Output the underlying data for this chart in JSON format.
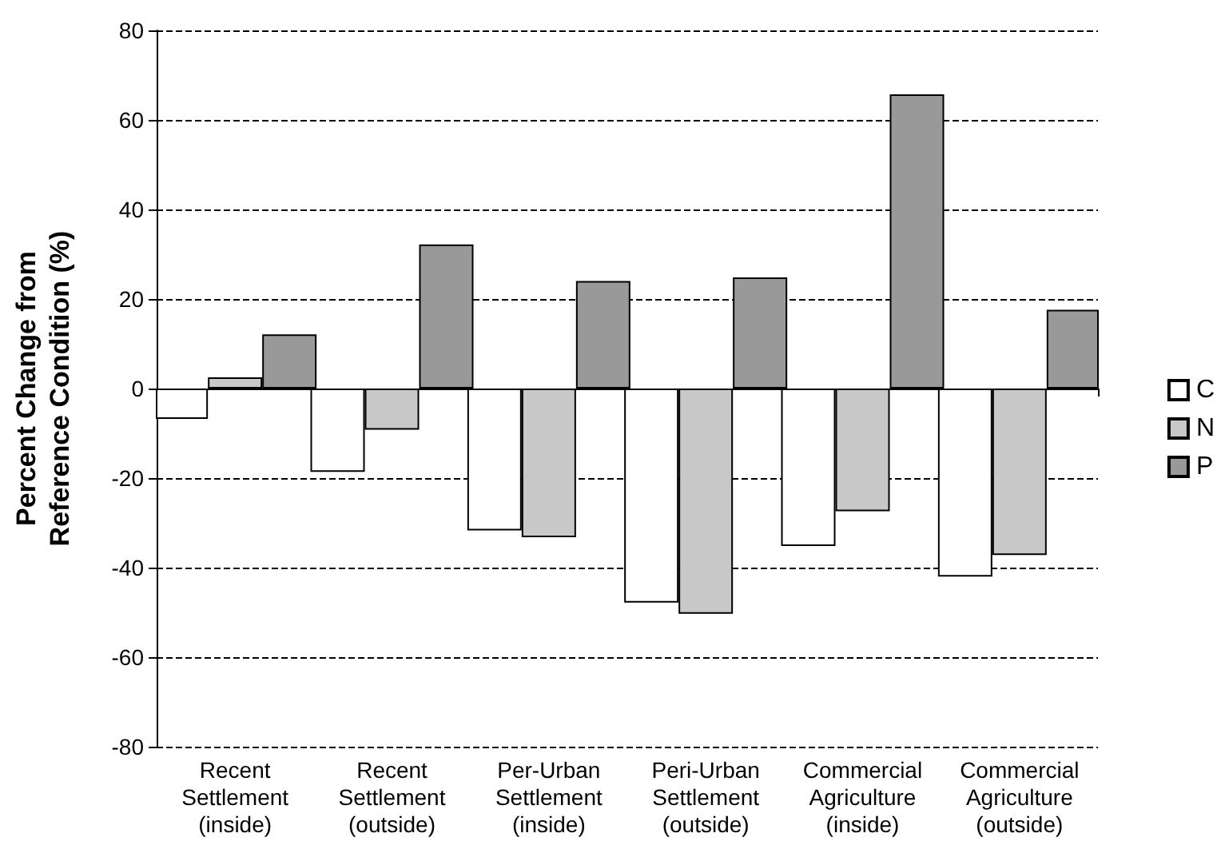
{
  "chart_data": {
    "type": "bar",
    "ylabel": "Percent Change from\nReference Condition (%)",
    "categories": [
      "Recent\nSettlement\n(inside)",
      "Recent\nSettlement\n(outside)",
      "Per-Urban\nSettlement\n(inside)",
      "Peri-Urban\nSettlement\n(outside)",
      "Commercial\nAgriculture\n(inside)",
      "Commercial\nAgriculture\n(outside)"
    ],
    "series": [
      {
        "name": "C",
        "color": "#ffffff",
        "values": [
          -6.8,
          -18.6,
          -31.7,
          -47.8,
          -35.2,
          -42
        ]
      },
      {
        "name": "N",
        "color": "#c8c8c8",
        "values": [
          2.5,
          -9.2,
          -33.2,
          -50.3,
          -27.4,
          -37.2
        ]
      },
      {
        "name": "P",
        "color": "#999999",
        "values": [
          12.1,
          32.2,
          24,
          24.8,
          65.7,
          17.6
        ]
      }
    ],
    "ylim": [
      -80,
      80
    ],
    "yticks": [
      -80,
      -60,
      -40,
      -20,
      0,
      20,
      40,
      60,
      80
    ],
    "grid": "y",
    "legend": "right"
  }
}
